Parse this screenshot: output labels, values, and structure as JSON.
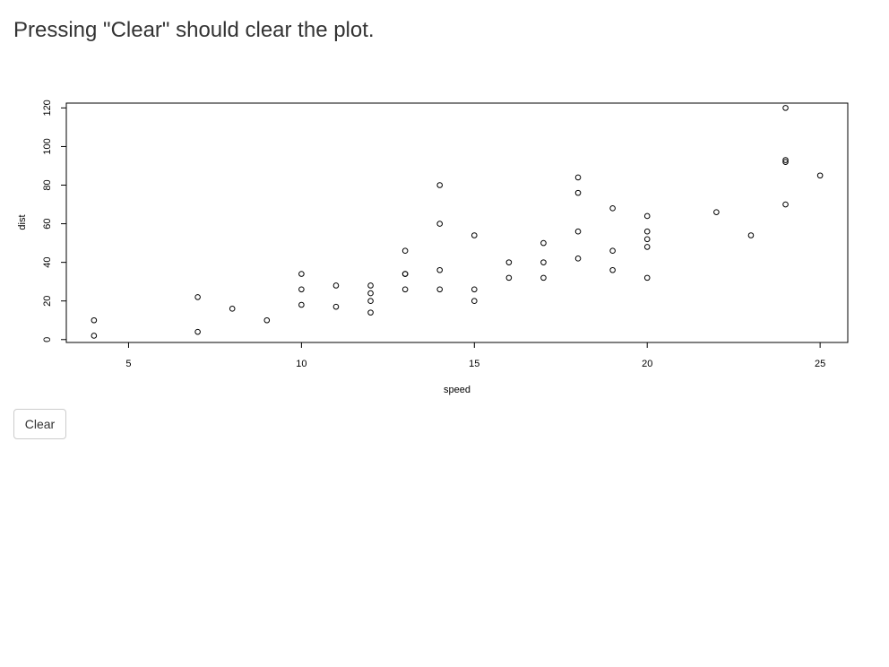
{
  "page": {
    "heading": "Pressing \"Clear\" should clear the plot."
  },
  "clear_button": {
    "label": "Clear"
  },
  "chart_data": {
    "type": "scatter",
    "title": "",
    "xlabel": "speed",
    "ylabel": "dist",
    "xlim": [
      3.2,
      25.8
    ],
    "ylim": [
      -1.5,
      122.5
    ],
    "xticks": [
      5,
      10,
      15,
      20,
      25
    ],
    "yticks": [
      0,
      20,
      40,
      60,
      80,
      100,
      120
    ],
    "grid": false,
    "marker": "open-circle",
    "x": [
      4,
      4,
      7,
      7,
      8,
      9,
      10,
      10,
      10,
      11,
      11,
      12,
      12,
      12,
      12,
      13,
      13,
      13,
      13,
      14,
      14,
      14,
      14,
      15,
      15,
      15,
      16,
      16,
      17,
      17,
      17,
      18,
      18,
      18,
      18,
      19,
      19,
      19,
      20,
      20,
      20,
      20,
      20,
      22,
      23,
      24,
      24,
      24,
      24,
      25
    ],
    "y": [
      2,
      10,
      4,
      22,
      16,
      10,
      18,
      26,
      34,
      17,
      28,
      14,
      20,
      24,
      28,
      26,
      34,
      34,
      46,
      26,
      36,
      60,
      80,
      20,
      26,
      54,
      32,
      40,
      32,
      40,
      50,
      42,
      56,
      76,
      84,
      36,
      46,
      68,
      32,
      48,
      52,
      56,
      64,
      66,
      54,
      70,
      92,
      93,
      120,
      85
    ]
  }
}
